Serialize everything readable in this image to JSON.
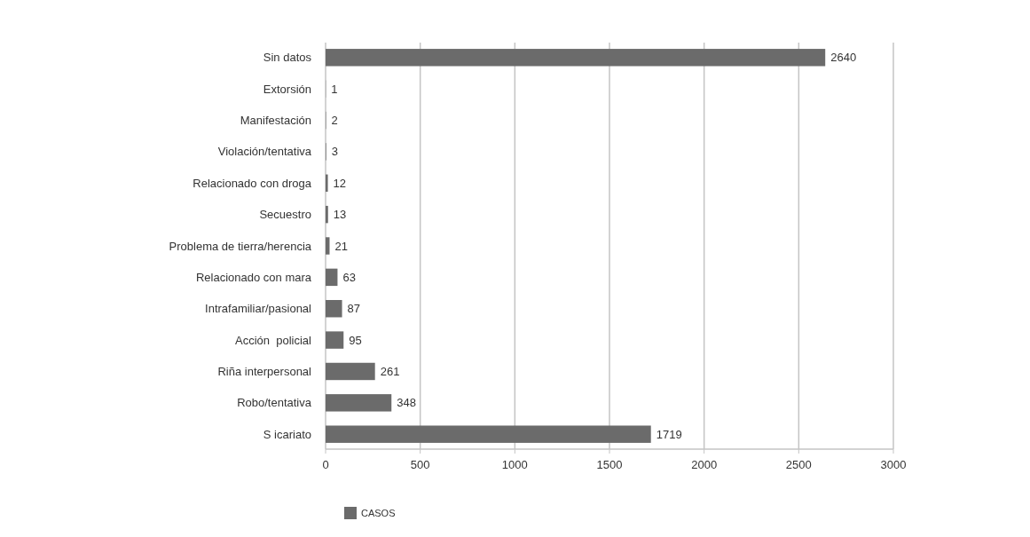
{
  "chart_data": {
    "type": "bar",
    "orientation": "horizontal",
    "categories": [
      "Sin datos",
      "Extorsión",
      "Manifestación",
      "Violación/tentativa",
      "Relacionado con droga",
      "Secuestro",
      "Problema de tierra/herencia",
      "Relacionado con mara",
      "Intrafamiliar/pasional",
      "Acción  policial",
      "Riña interpersonal",
      "Robo/tentativa",
      "S icariato"
    ],
    "series": [
      {
        "name": "CASOS",
        "color": "#6b6b6b",
        "values": [
          2640,
          1,
          2,
          3,
          12,
          13,
          21,
          63,
          87,
          95,
          261,
          348,
          1719
        ]
      }
    ],
    "xlim": [
      0,
      3000
    ],
    "xticks": [
      0,
      500,
      1000,
      1500,
      2000,
      2500,
      3000
    ],
    "grid": "x",
    "legend": "bottom",
    "data_labels": true
  }
}
